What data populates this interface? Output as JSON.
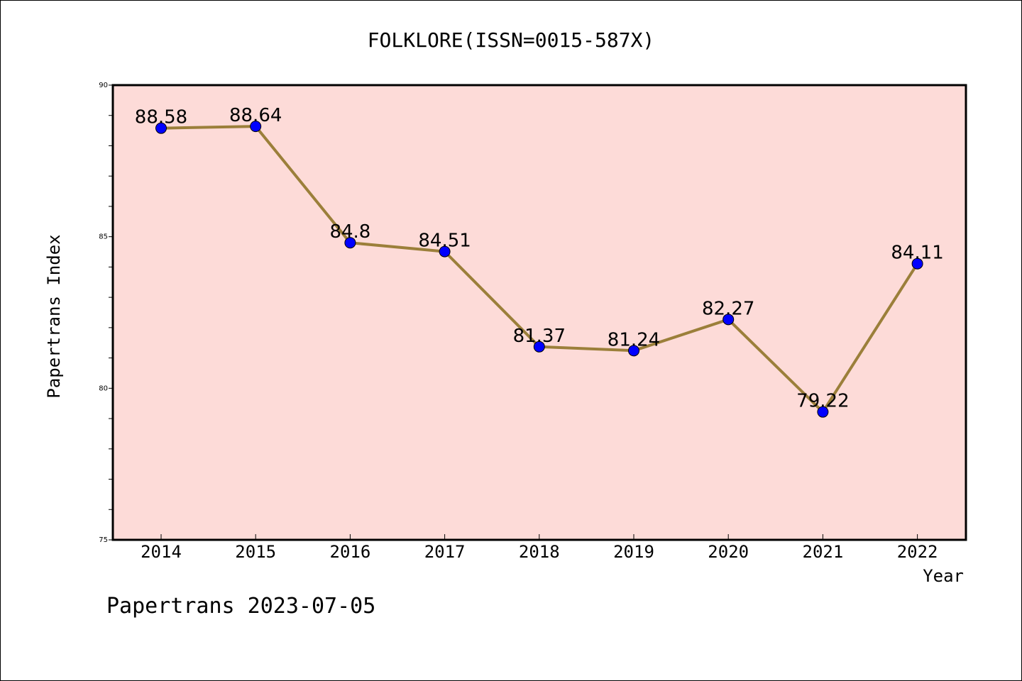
{
  "chart_data": {
    "type": "line",
    "title": "FOLKLORE(ISSN=0015-587X)",
    "xlabel": "Year",
    "ylabel": "Papertrans Index",
    "x": [
      "2014",
      "2015",
      "2016",
      "2017",
      "2018",
      "2019",
      "2020",
      "2021",
      "2022"
    ],
    "series": [
      {
        "values": [
          88.58,
          88.64,
          84.8,
          84.51,
          81.37,
          81.24,
          82.27,
          79.22,
          84.11
        ],
        "labels": [
          "88.58",
          "88.64",
          "84.8",
          "84.51",
          "81.37",
          "81.24",
          "82.27",
          "79.22",
          "84.11"
        ],
        "line_color": "#9B7F3A",
        "marker_color": "#0000FF"
      }
    ],
    "ylim": [
      75,
      90
    ],
    "yticks": [
      "75",
      "80",
      "85",
      "90"
    ],
    "plot_background": "#FDDBD8",
    "grid": false,
    "footer": "Papertrans 2023-07-05"
  }
}
